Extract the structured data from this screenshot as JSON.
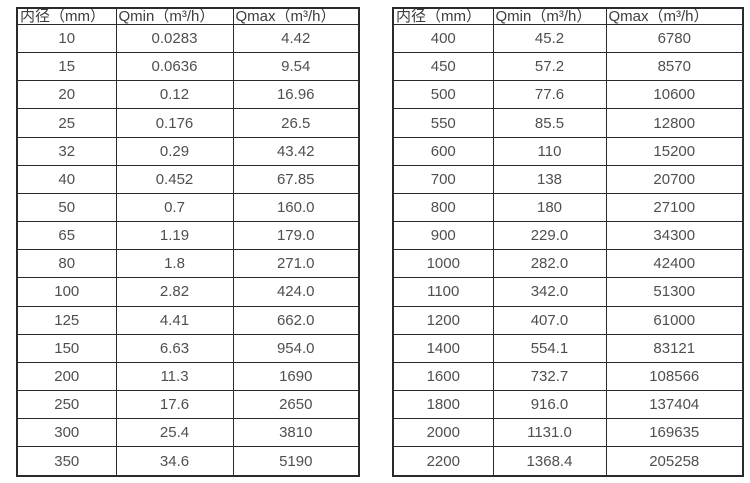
{
  "colors": {
    "border": "#2a2a2a",
    "text": "#4f4f4f",
    "header-text": "#3d3d3d",
    "bg": "#ffffff"
  },
  "tables": [
    {
      "name": "small-diameter-flow-table",
      "headers": [
        "内径（mm）",
        "Qmin（m³/h）",
        "Qmax（m³/h）"
      ],
      "rows": [
        [
          "10",
          "0.0283",
          "4.42"
        ],
        [
          "15",
          "0.0636",
          "9.54"
        ],
        [
          "20",
          "0.12",
          "16.96"
        ],
        [
          "25",
          "0.176",
          "26.5"
        ],
        [
          "32",
          "0.29",
          "43.42"
        ],
        [
          "40",
          "0.452",
          "67.85"
        ],
        [
          "50",
          "0.7",
          "160.0"
        ],
        [
          "65",
          "1.19",
          "179.0"
        ],
        [
          "80",
          "1.8",
          "271.0"
        ],
        [
          "100",
          "2.82",
          "424.0"
        ],
        [
          "125",
          "4.41",
          "662.0"
        ],
        [
          "150",
          "6.63",
          "954.0"
        ],
        [
          "200",
          "11.3",
          "1690"
        ],
        [
          "250",
          "17.6",
          "2650"
        ],
        [
          "300",
          "25.4",
          "3810"
        ],
        [
          "350",
          "34.6",
          "5190"
        ]
      ]
    },
    {
      "name": "large-diameter-flow-table",
      "headers": [
        "内径（mm）",
        "Qmin（m³/h）",
        "Qmax（m³/h）"
      ],
      "rows": [
        [
          "400",
          "45.2",
          "6780"
        ],
        [
          "450",
          "57.2",
          "8570"
        ],
        [
          "500",
          "77.6",
          "10600"
        ],
        [
          "550",
          "85.5",
          "12800"
        ],
        [
          "600",
          "110",
          "15200"
        ],
        [
          "700",
          "138",
          "20700"
        ],
        [
          "800",
          "180",
          "27100"
        ],
        [
          "900",
          "229.0",
          "34300"
        ],
        [
          "1000",
          "282.0",
          "42400"
        ],
        [
          "1100",
          "342.0",
          "51300"
        ],
        [
          "1200",
          "407.0",
          "61000"
        ],
        [
          "1400",
          "554.1",
          "83121"
        ],
        [
          "1600",
          "732.7",
          "108566"
        ],
        [
          "1800",
          "916.0",
          "137404"
        ],
        [
          "2000",
          "1131.0",
          "169635"
        ],
        [
          "2200",
          "1368.4",
          "205258"
        ]
      ]
    }
  ]
}
